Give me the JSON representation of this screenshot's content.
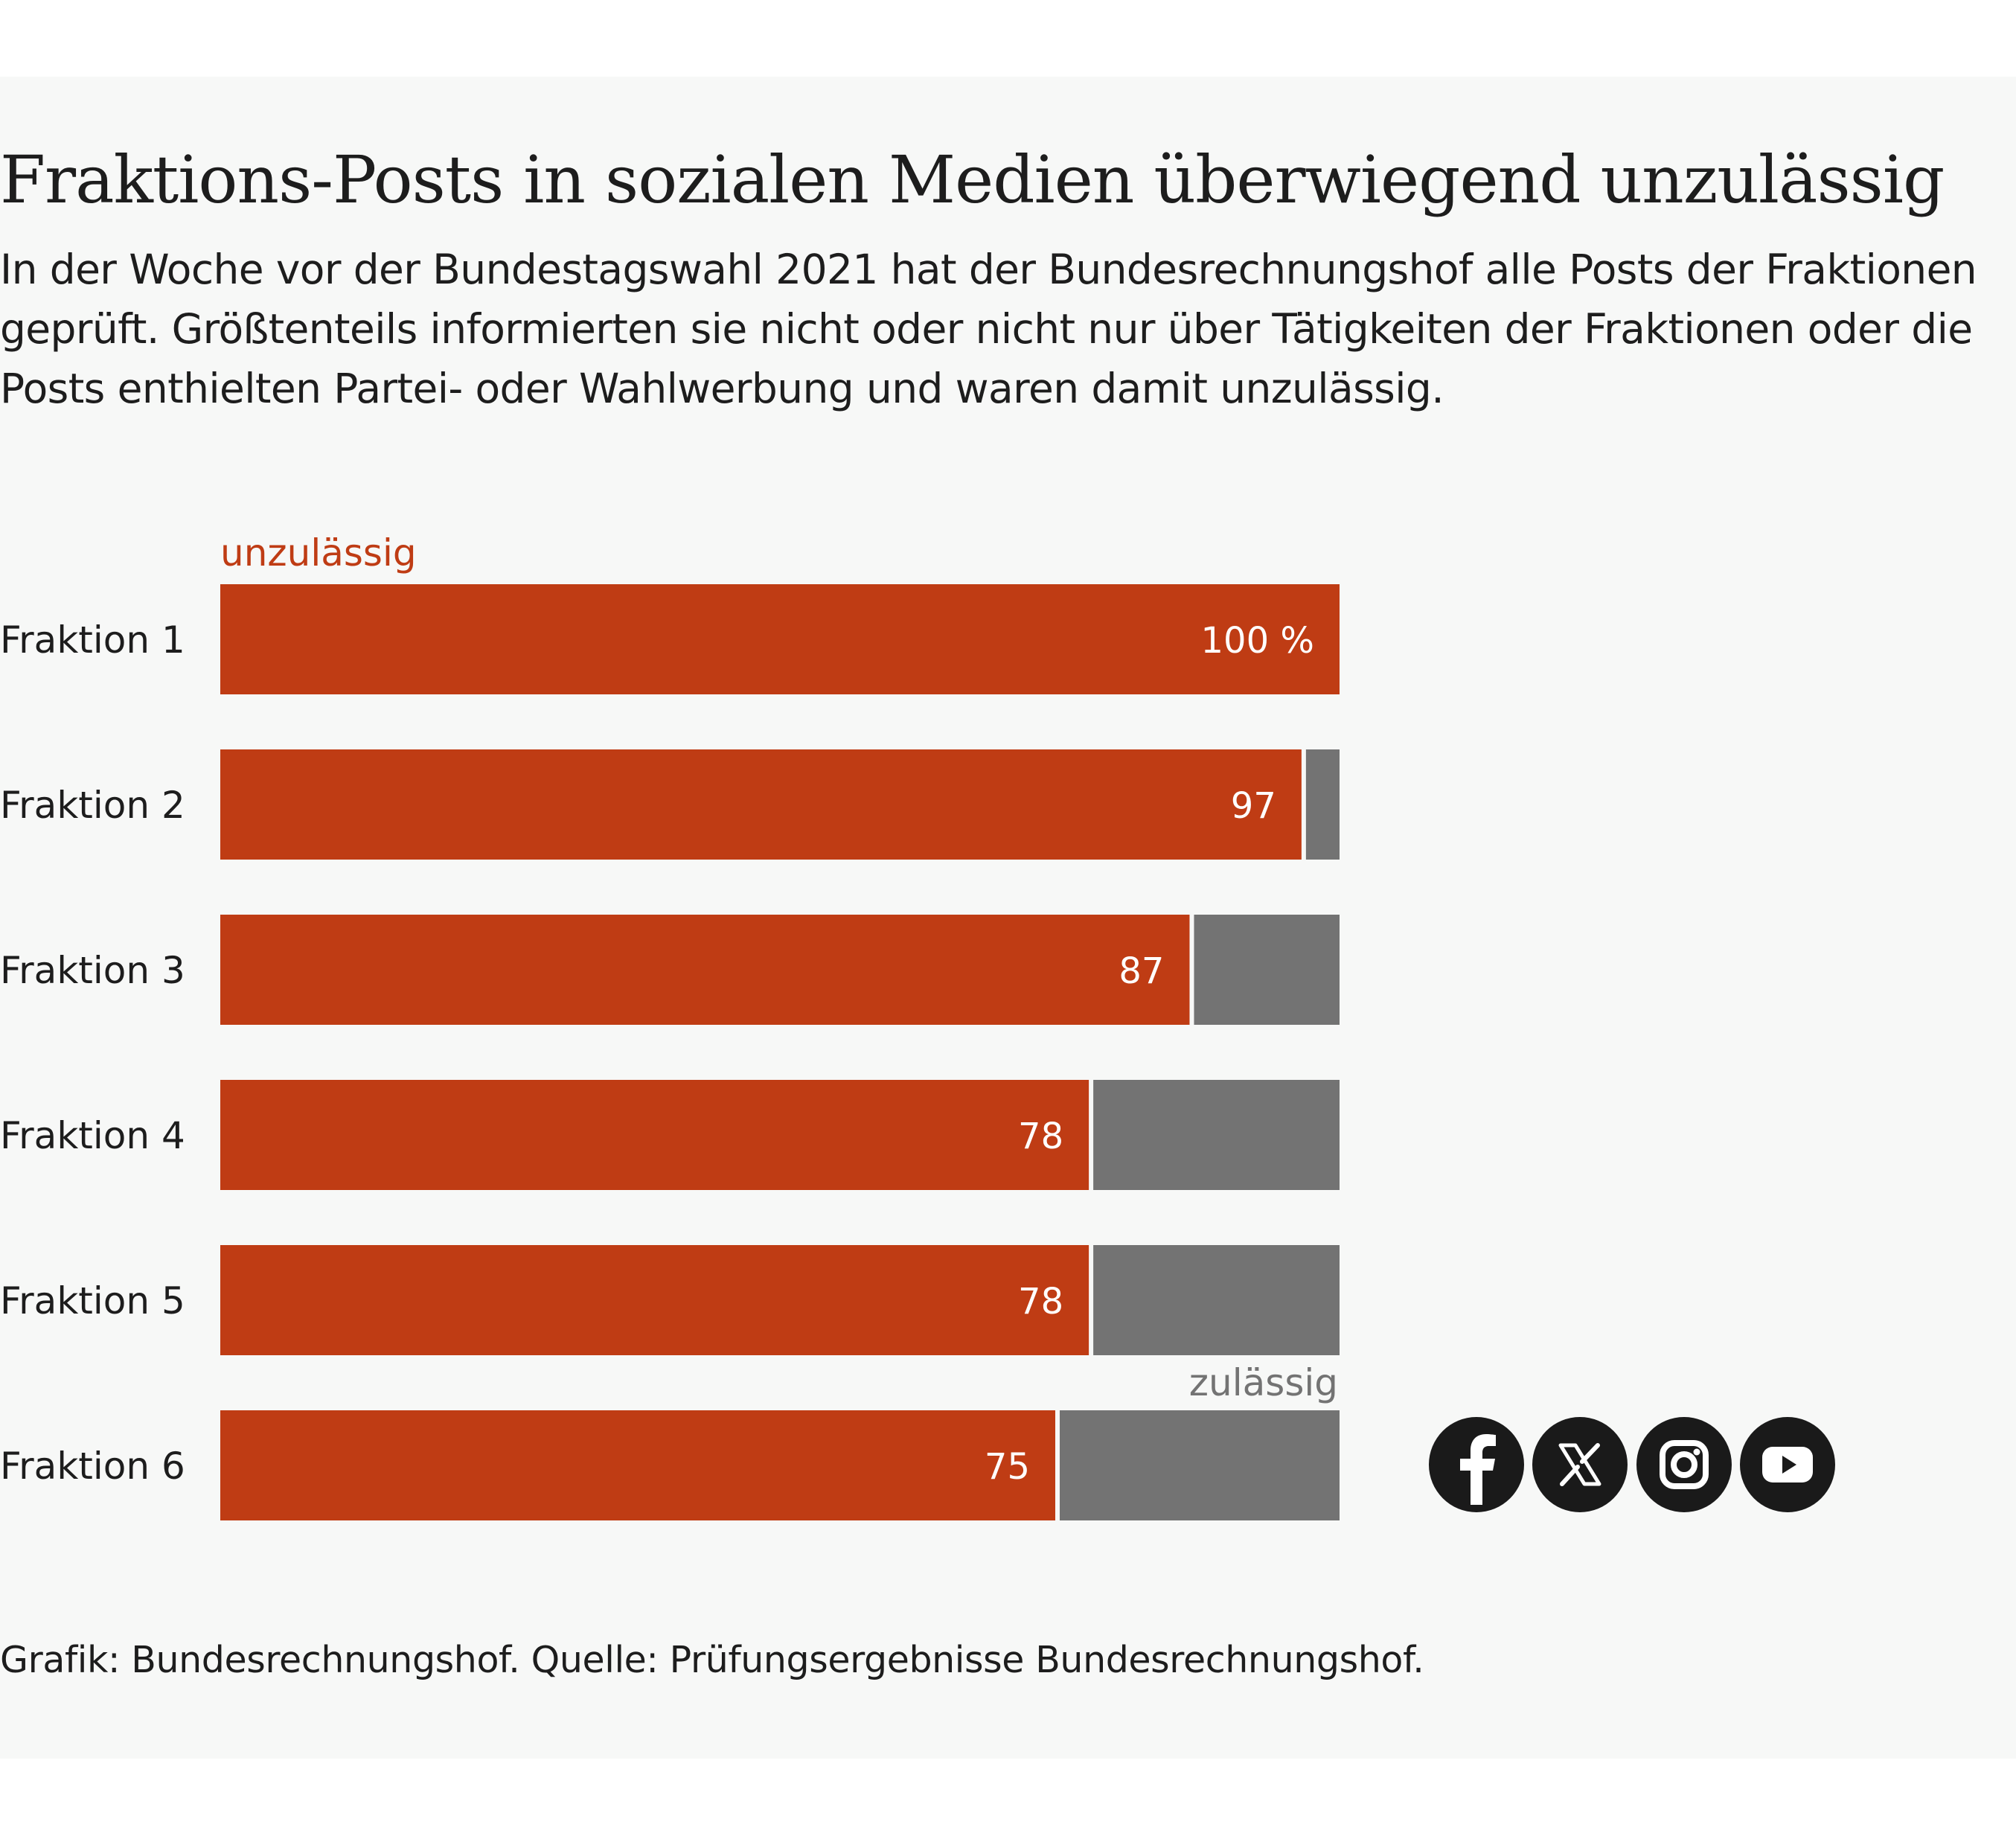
{
  "title": "Fraktions-Posts in sozialen Medien überwiegend unzulässig",
  "subtitle": "In der Woche vor der Bundestagswahl 2021 hat der Bundesrechnungshof alle Posts der Fraktionen geprüft. Größtenteils informierten sie nicht oder nicht nur über Tätigkeiten der Fraktionen oder die Posts enthielten Partei- oder Wahlwerbung und waren damit unzulässig.",
  "source": "Grafik: Bundesrechnungshof. Quelle: Prüfungsergebnisse Bundesrechnungshof.",
  "colors": {
    "unzulaessig": "#bf3c14",
    "zulaessig": "#737373",
    "text": "#1d1d1d",
    "background": "#f7f8f7"
  },
  "chart_data": {
    "type": "bar",
    "orientation": "horizontal",
    "stacked": true,
    "categories": [
      "Fraktion 1",
      "Fraktion 2",
      "Fraktion 3",
      "Fraktion 4",
      "Fraktion 5",
      "Fraktion 6"
    ],
    "series": [
      {
        "name": "unzulässig",
        "values": [
          100,
          97,
          87,
          78,
          78,
          75
        ],
        "labels": [
          "100 %",
          "97",
          "87",
          "78",
          "78",
          "75"
        ]
      },
      {
        "name": "zulässig",
        "values": [
          0,
          3,
          13,
          22,
          22,
          25
        ]
      }
    ],
    "xlim": [
      0,
      100
    ],
    "grid": false,
    "legend": "inline labels"
  },
  "social": [
    {
      "name": "facebook-icon"
    },
    {
      "name": "x-icon"
    },
    {
      "name": "instagram-icon"
    },
    {
      "name": "youtube-icon"
    }
  ]
}
